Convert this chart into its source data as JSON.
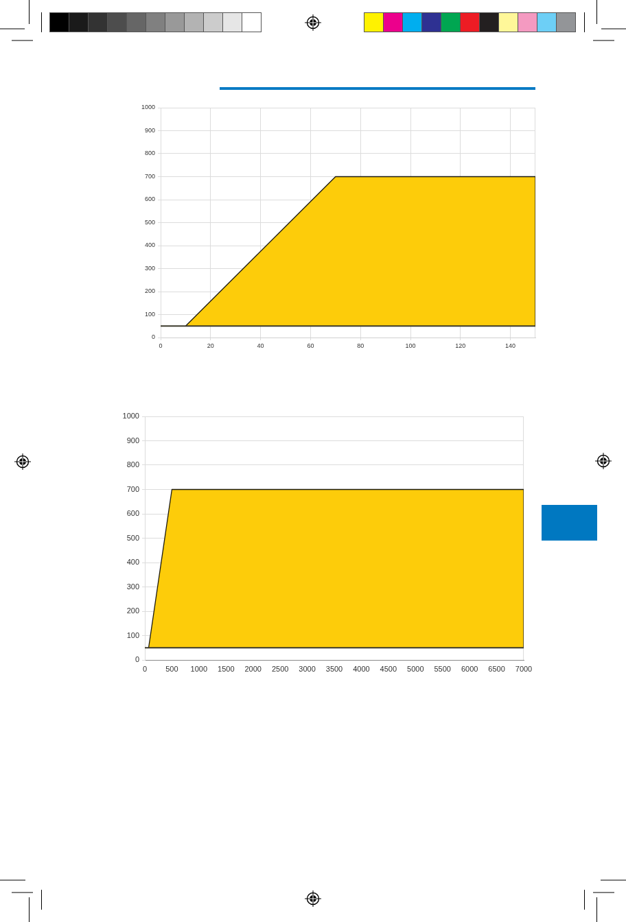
{
  "chart_data": [
    {
      "type": "area",
      "xlim": [
        0,
        150
      ],
      "xticks": [
        0,
        20,
        40,
        60,
        80,
        100,
        120,
        140
      ],
      "ylim": [
        0,
        1000
      ],
      "yticks": [
        0,
        100,
        200,
        300,
        400,
        500,
        600,
        700,
        800,
        900,
        1000
      ],
      "grid": true,
      "series": [
        {
          "type": "line",
          "color": "#3c3a2c",
          "x": [
            0,
            150
          ],
          "values": [
            50,
            50
          ]
        },
        {
          "color": "#fdcc0a",
          "x": [
            10,
            70,
            150,
            150
          ],
          "values": [
            50,
            700,
            700,
            50
          ]
        }
      ]
    },
    {
      "type": "area",
      "xlim": [
        0,
        7000
      ],
      "xticks": [
        0,
        500,
        1000,
        1500,
        2000,
        2500,
        3000,
        3500,
        4000,
        4500,
        5000,
        5500,
        6000,
        6500,
        7000
      ],
      "ylim": [
        0,
        1000
      ],
      "yticks": [
        0,
        100,
        200,
        300,
        400,
        500,
        600,
        700,
        800,
        900,
        1000
      ],
      "grid": "y",
      "series": [
        {
          "type": "line",
          "color": "#3c3a2c",
          "x": [
            0,
            7000
          ],
          "values": [
            50,
            50
          ]
        },
        {
          "color": "#fdcc0a",
          "x": [
            70,
            500,
            7000,
            7000
          ],
          "values": [
            50,
            700,
            700,
            50
          ]
        }
      ]
    }
  ]
}
